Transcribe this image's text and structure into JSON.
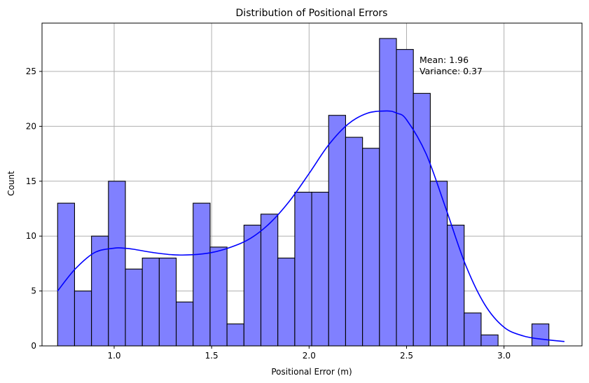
{
  "chart_data": {
    "type": "bar",
    "title": "Distribution of Positional Errors",
    "xlabel": "Positional Error (m)",
    "ylabel": "Count",
    "xlim": [
      0.63,
      3.4
    ],
    "ylim": [
      0,
      29.4
    ],
    "grid": true,
    "x_ticks": [
      1.0,
      1.5,
      2.0,
      2.5,
      3.0
    ],
    "x_tick_labels": [
      "1.0",
      "1.5",
      "2.0",
      "2.5",
      "3.0"
    ],
    "y_ticks": [
      0,
      5,
      10,
      15,
      20,
      25
    ],
    "y_tick_labels": [
      "0",
      "5",
      "10",
      "15",
      "20",
      "25"
    ],
    "bar_color": "#8080ff",
    "bar_edge_color": "#000000",
    "kde_color": "#0000ff",
    "bins": {
      "start": 0.71,
      "width": 0.0869,
      "counts": [
        13,
        5,
        10,
        15,
        7,
        8,
        8,
        4,
        13,
        9,
        2,
        11,
        12,
        8,
        14,
        14,
        21,
        19,
        18,
        28,
        27,
        23,
        15,
        11,
        3,
        1,
        0,
        0,
        2
      ]
    },
    "kde": {
      "x": [
        0.71,
        0.8,
        0.9,
        1.0,
        1.05,
        1.1,
        1.2,
        1.3,
        1.4,
        1.5,
        1.6,
        1.7,
        1.8,
        1.9,
        2.0,
        2.1,
        2.2,
        2.3,
        2.4,
        2.45,
        2.5,
        2.6,
        2.7,
        2.8,
        2.9,
        3.0,
        3.1,
        3.2,
        3.31
      ],
      "y": [
        5.0,
        7.0,
        8.5,
        8.9,
        8.9,
        8.8,
        8.5,
        8.3,
        8.3,
        8.5,
        9.0,
        9.8,
        11.2,
        13.2,
        15.7,
        18.3,
        20.2,
        21.2,
        21.4,
        21.2,
        20.6,
        17.5,
        12.6,
        7.5,
        3.8,
        1.7,
        0.9,
        0.6,
        0.4
      ]
    },
    "annotations": {
      "mean": "Mean: 1.96",
      "variance": "Variance: 0.37"
    }
  }
}
